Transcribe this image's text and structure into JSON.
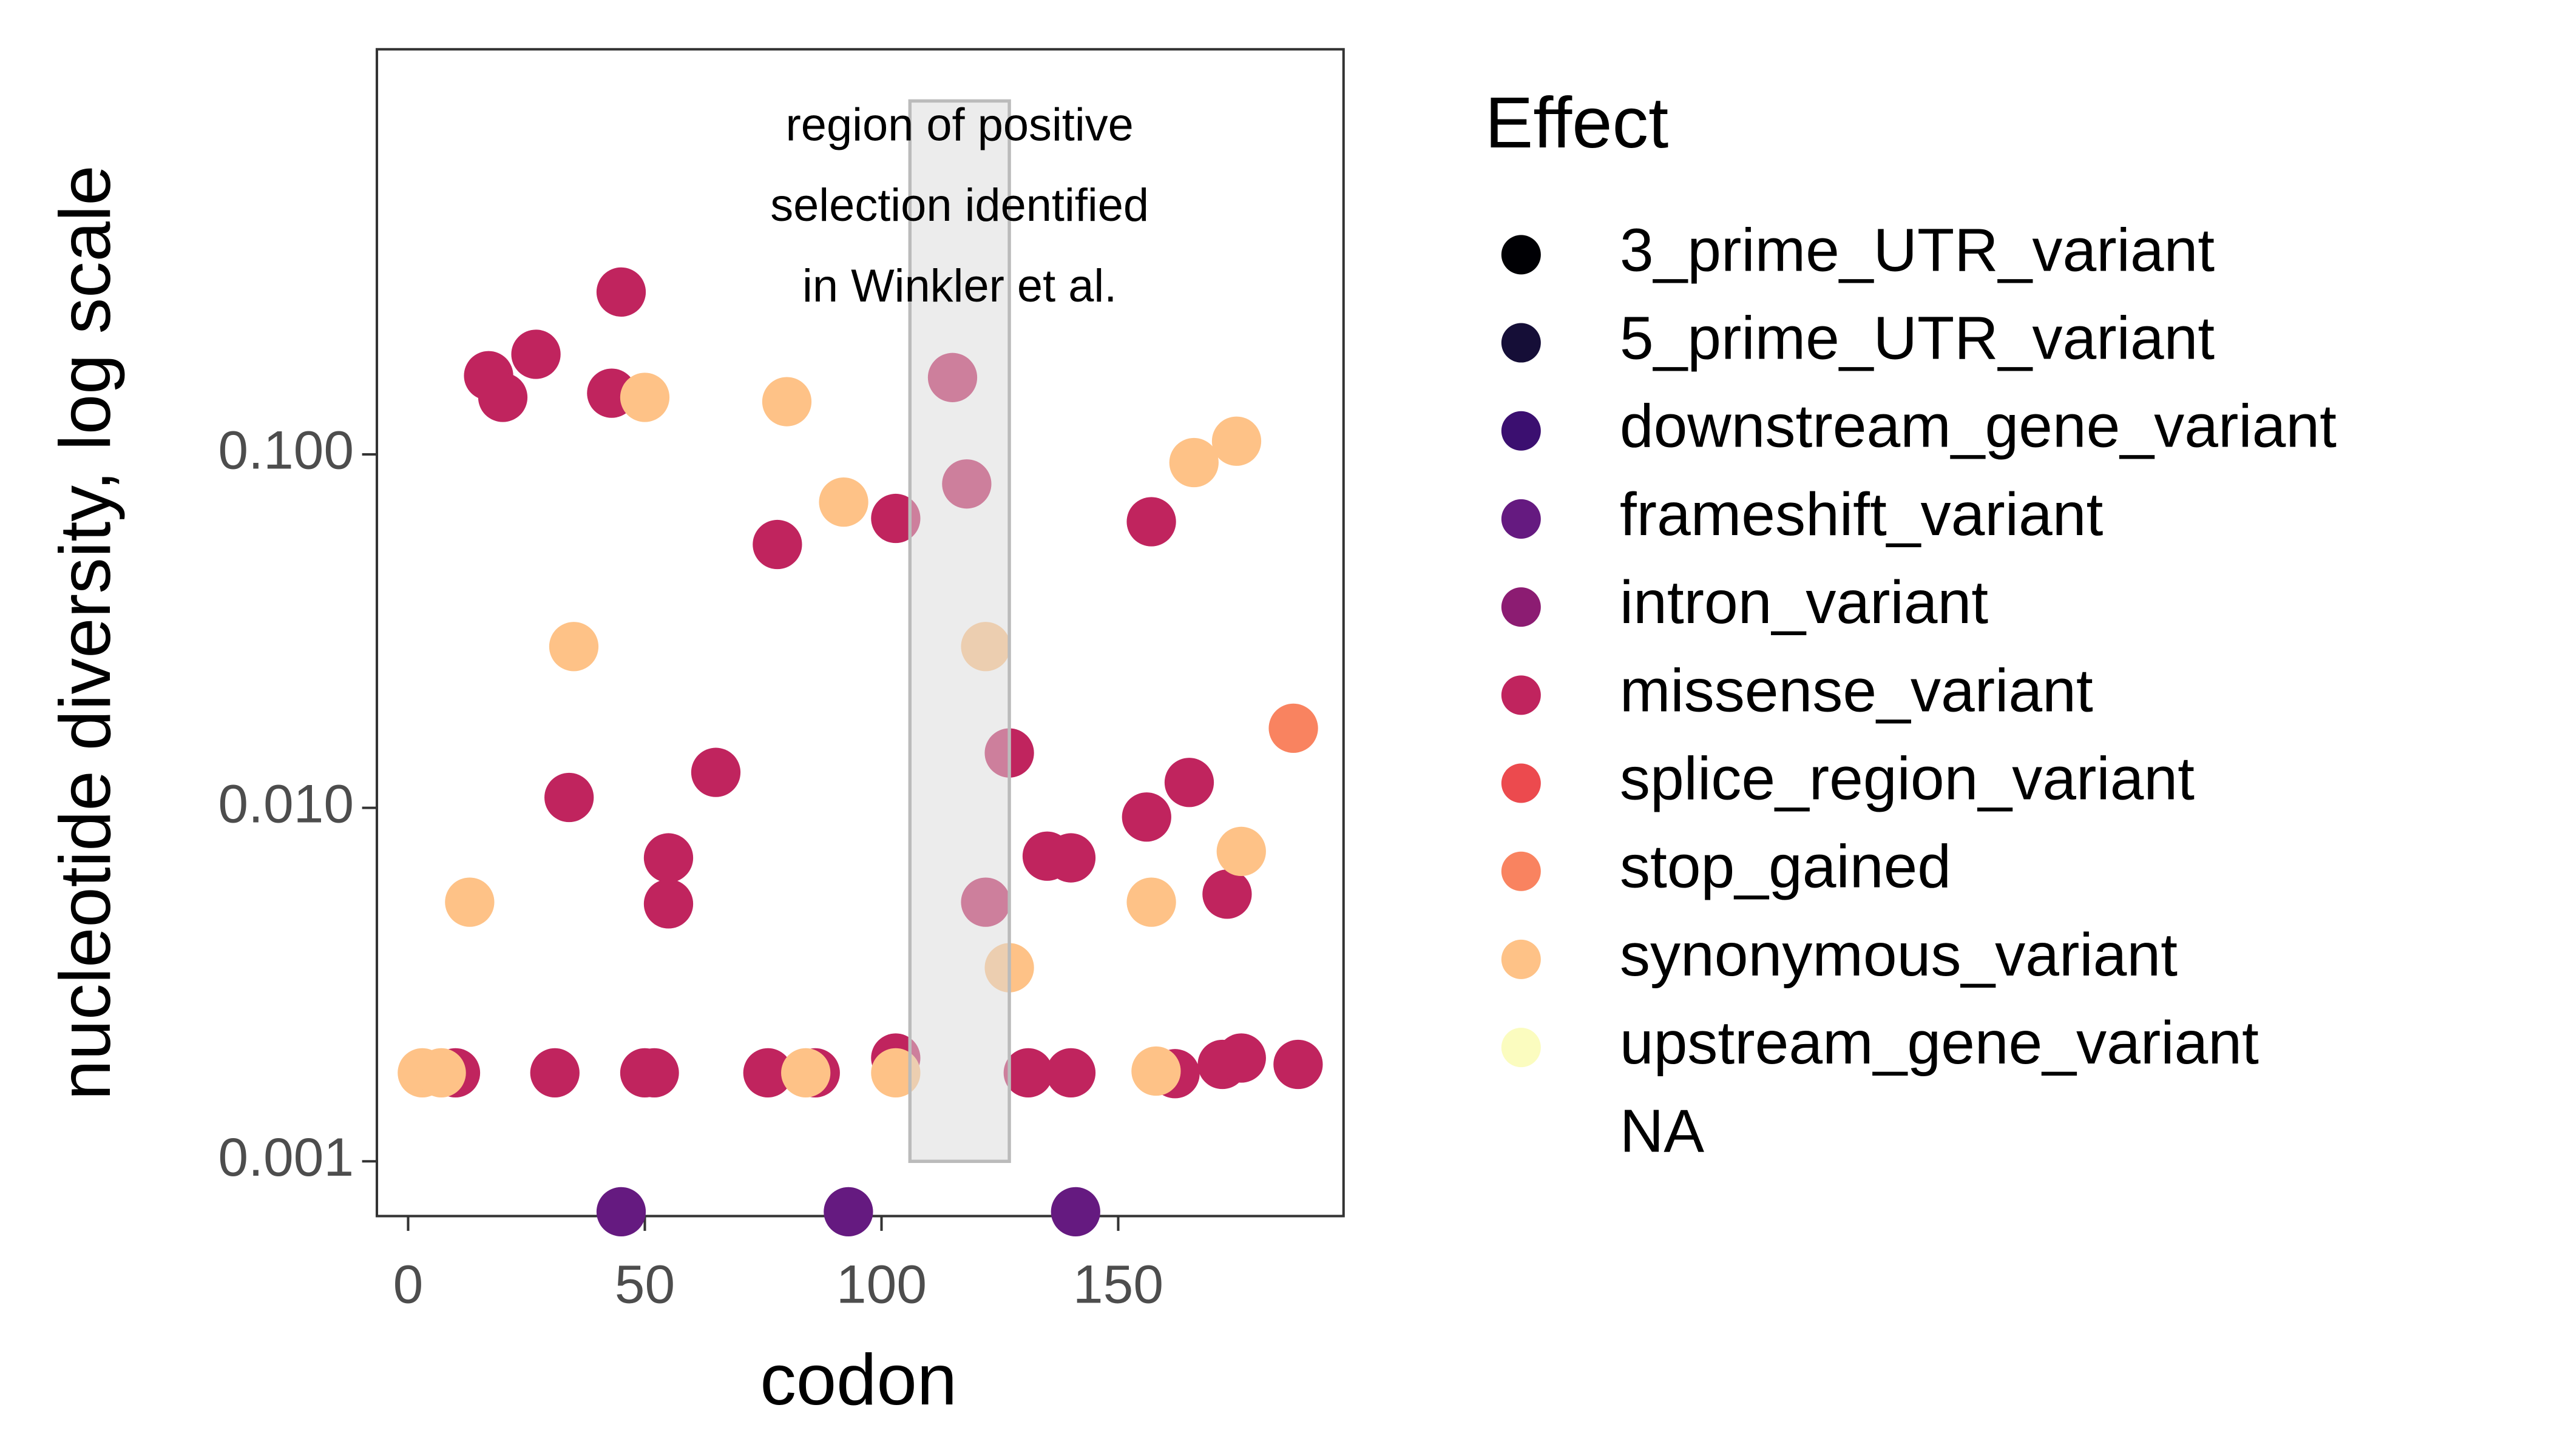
{
  "chart_data": {
    "type": "scatter",
    "x_label": "codon",
    "y_label": "nucleotide diversity, log scale",
    "legend_title": "Effect",
    "log_y": true,
    "grid": false,
    "legend_position": "right",
    "xlim": [
      -6.6,
      197.6
    ],
    "xticks": [
      0,
      50,
      100,
      150
    ],
    "ylim": [
      0.0007,
      1.4
    ],
    "yticks": [
      0.001,
      {
        "value": 0.01,
        "label": "0.010"
      },
      {
        "value": 0.1,
        "label": "0.100"
      }
    ],
    "highlight": {
      "x": [
        106,
        127
      ],
      "y": [
        0.001,
        1
      ],
      "color": "#d9d9d9",
      "label": [
        "region of positive",
        "selection identified",
        "in Winkler et al."
      ]
    },
    "series": [
      {
        "name": "3_prime_UTR_variant",
        "color": "#000004",
        "x": [],
        "values": []
      },
      {
        "name": "5_prime_UTR_variant",
        "color": "#150e37",
        "x": [],
        "values": []
      },
      {
        "name": "downstream_gene_variant",
        "color": "#3b0f70",
        "x": [],
        "values": []
      },
      {
        "name": "frameshift_variant",
        "color": "#651a80",
        "x": [
          45,
          93,
          141
        ],
        "values": [
          0.00072,
          0.00072,
          0.00072
        ]
      },
      {
        "name": "intron_variant",
        "color": "#8c1c72",
        "x": [],
        "values": []
      },
      {
        "name": "missense_variant",
        "color": "#c0245e",
        "x": [
          45,
          17,
          20,
          27,
          43,
          115,
          118,
          103,
          78,
          157,
          34,
          65,
          55,
          55,
          127,
          156,
          165,
          135,
          140,
          173,
          122,
          10,
          31,
          50,
          52,
          76,
          86,
          103,
          131,
          140,
          162,
          172,
          176,
          188
        ],
        "values": [
          0.288,
          0.167,
          0.145,
          0.192,
          0.149,
          0.165,
          0.0825,
          0.0659,
          0.0556,
          0.0645,
          0.0107,
          0.0126,
          0.00722,
          0.00535,
          0.0143,
          0.00942,
          0.0118,
          0.0073,
          0.00722,
          0.0057,
          0.00541,
          0.00178,
          0.00178,
          0.00178,
          0.00178,
          0.00178,
          0.00178,
          0.00196,
          0.00178,
          0.00178,
          0.00177,
          0.00188,
          0.00196,
          0.00188
        ]
      },
      {
        "name": "splice_region_variant",
        "color": "#ec4a4e",
        "x": [],
        "values": []
      },
      {
        "name": "stop_gained",
        "color": "#f98360",
        "x": [
          187
        ],
        "values": [
          0.0168
        ]
      },
      {
        "name": "synonymous_variant",
        "color": "#fec287",
        "x": [
          50,
          80,
          92,
          35,
          122,
          166,
          175,
          13,
          176,
          157,
          127,
          3,
          7,
          84,
          103,
          158
        ],
        "values": [
          0.145,
          0.141,
          0.0733,
          0.0286,
          0.0286,
          0.0948,
          0.109,
          0.00541,
          0.00753,
          0.00541,
          0.00353,
          0.00178,
          0.00178,
          0.00178,
          0.00178,
          0.0018
        ]
      },
      {
        "name": "upstream_gene_variant",
        "color": "#fbfcbf",
        "x": [],
        "values": []
      },
      {
        "name": "NA",
        "color": null,
        "x": [],
        "values": []
      }
    ]
  }
}
